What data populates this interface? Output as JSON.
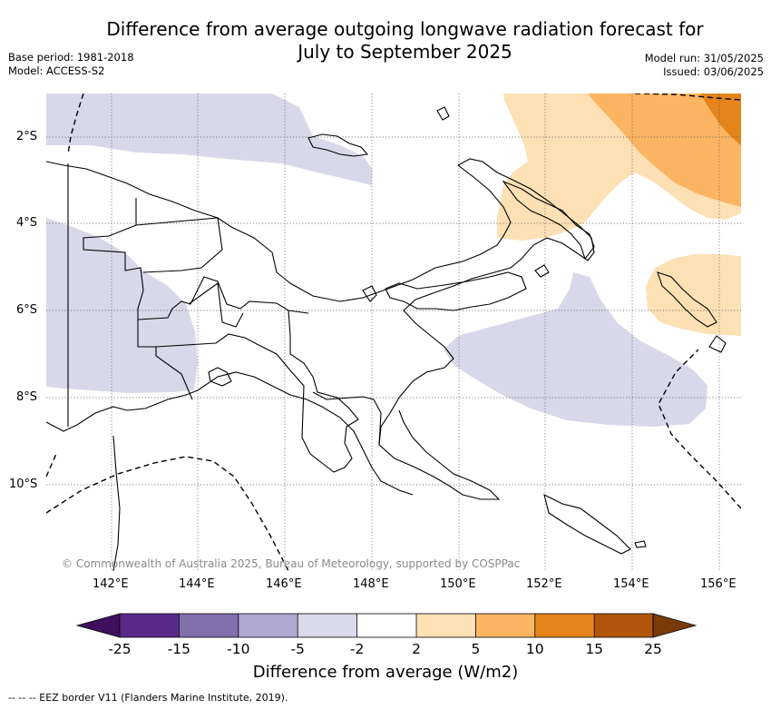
{
  "header": {
    "title_line1": "Difference from average outgoing longwave radiation forecast for",
    "title_line2": "July to September 2025",
    "base_period": "Base period: 1981-2018",
    "model": "Model: ACCESS-S2",
    "model_run": "Model run: 31/05/2025",
    "issued": "Issued: 03/06/2025"
  },
  "map": {
    "lat_labels": [
      "2°S",
      "4°S",
      "6°S",
      "8°S",
      "10°S"
    ],
    "lon_labels": [
      "142°E",
      "144°E",
      "146°E",
      "148°E",
      "150°E",
      "152°E",
      "154°E",
      "156°E"
    ],
    "copyright": "© Commonwealth of Australia 2025, Bureau of Meteorology, supported by COSPPac"
  },
  "colorbar": {
    "labels": [
      "-25",
      "-15",
      "-10",
      "-5",
      "-2",
      "2",
      "5",
      "10",
      "15",
      "25"
    ],
    "colors": [
      "#3f0f5e",
      "#5a2a8a",
      "#8170ad",
      "#afa8d2",
      "#d9d9ea",
      "#ffffff",
      "#fde0b4",
      "#fbb562",
      "#e4841a",
      "#b1560a",
      "#7a3b07"
    ],
    "title": "Difference from average (W/m2)"
  },
  "footnote": "--  --  -- EEZ border V11 (Flanders Marine Institute, 2019)."
}
